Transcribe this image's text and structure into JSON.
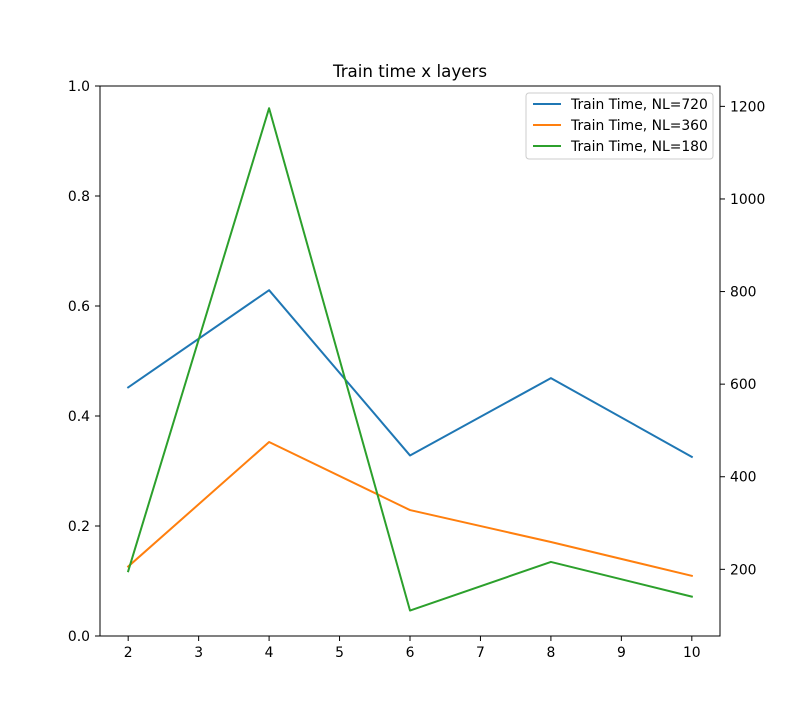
{
  "chart_data": {
    "type": "line",
    "title": "Train time x layers",
    "xlabel": "",
    "ylabel": "",
    "x": [
      2,
      4,
      6,
      8,
      10
    ],
    "xlim": [
      1.6,
      10.4
    ],
    "x_ticks": [
      "2",
      "3",
      "4",
      "5",
      "6",
      "7",
      "8",
      "9",
      "10"
    ],
    "left_axis": {
      "ylim": [
        0.0,
        1.0
      ],
      "ticks": [
        "0.0",
        "0.2",
        "0.4",
        "0.6",
        "0.8",
        "1.0"
      ]
    },
    "right_axis": {
      "ylim": [
        56,
        1244
      ],
      "ticks": [
        "200",
        "400",
        "600",
        "800",
        "1000",
        "1200"
      ]
    },
    "series": [
      {
        "name": "Train Time, NL=720",
        "color": "#1f77b4",
        "axis": "right",
        "values": [
          593,
          803,
          446,
          613,
          443
        ]
      },
      {
        "name": "Train Time, NL=360",
        "color": "#ff7f0e",
        "axis": "right",
        "values": [
          206,
          475,
          328,
          259,
          186
        ]
      },
      {
        "name": "Train Time, NL=180",
        "color": "#2ca02c",
        "axis": "right",
        "values": [
          196,
          1196,
          111,
          216,
          141
        ]
      }
    ],
    "grid": false,
    "legend_position": "upper right"
  }
}
